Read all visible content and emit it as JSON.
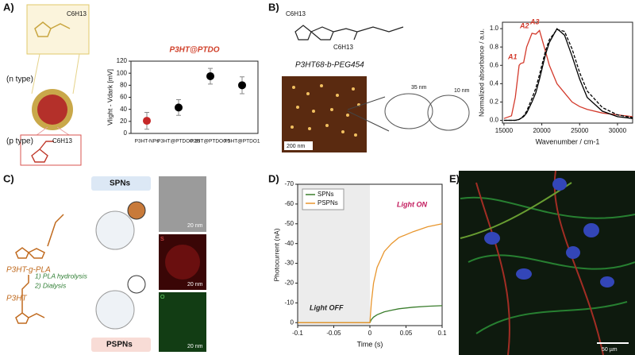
{
  "panel_labels": [
    "A)",
    "B)",
    "C)",
    "D)",
    "E)"
  ],
  "panel_a": {
    "n_type": "(n type)",
    "p_type": "(p type)",
    "substituent": "C6H13"
  },
  "panel_b": {
    "polymer": "P3HT68-b-PEG454",
    "substituent": "C6H13",
    "scale_bar": "200 nm",
    "dims": [
      "35 nm",
      "10 nm"
    ]
  },
  "panel_c": {
    "spns": "SPNs",
    "pspns": "PSPNs",
    "polymer": "P3HT-g-PLA",
    "step1": "1) PLA hydrolysis",
    "step2": "2) Dialysis",
    "p3ht": "P3HT",
    "scale_bars": [
      "20 nm",
      "20 nm",
      "20 nm"
    ],
    "channels": [
      "S",
      "O"
    ]
  },
  "panel_e": {
    "scale_bar": "50 µm"
  },
  "chart_data": [
    {
      "type": "scatter",
      "title": "P3HT@PTDO",
      "y_label": "Vlight - Vdark [mV]",
      "categories": [
        "P3HT-NPs",
        "P3HT@PTDO0.25",
        "P3HT@PTDO0.5",
        "P3HT@PTDO1"
      ],
      "series": [
        {
          "values": [
            21,
            43,
            95,
            80
          ],
          "errors": [
            14,
            13,
            13,
            14
          ],
          "point_colors": [
            "#c62828",
            "#000000",
            "#000000",
            "#000000"
          ]
        }
      ],
      "ylim": [
        0,
        120
      ],
      "yticks": [
        0,
        20,
        40,
        60,
        80,
        100,
        120
      ],
      "grid": false
    },
    {
      "type": "line",
      "x_label": "Wavenumber / cm-1",
      "y_label": "Normalized absorbance / a.u.",
      "x": [
        15000,
        16000,
        16500,
        17000,
        17200,
        17600,
        18000,
        18700,
        19200,
        19700,
        20500,
        21000,
        22000,
        23000,
        24000,
        25000,
        26000,
        28000,
        30000,
        32000
      ],
      "series": [
        {
          "color": "#d33a2c",
          "dash": false,
          "values": [
            0.02,
            0.05,
            0.25,
            0.6,
            0.62,
            0.63,
            0.8,
            0.95,
            0.94,
            0.98,
            0.75,
            0.6,
            0.4,
            0.3,
            0.2,
            0.15,
            0.12,
            0.08,
            0.06,
            0.04
          ]
        },
        {
          "color": "#000000",
          "dash": false,
          "values": [
            0,
            0,
            0,
            0.01,
            0.02,
            0.04,
            0.08,
            0.2,
            0.3,
            0.45,
            0.72,
            0.85,
            1.0,
            0.93,
            0.7,
            0.45,
            0.25,
            0.1,
            0.04,
            0.02
          ]
        },
        {
          "color": "#000000",
          "dash": true,
          "values": [
            0,
            0,
            0,
            0.01,
            0.02,
            0.05,
            0.1,
            0.24,
            0.35,
            0.5,
            0.76,
            0.88,
            0.99,
            0.97,
            0.78,
            0.52,
            0.32,
            0.14,
            0.06,
            0.03
          ]
        }
      ],
      "annotations": [
        "A1",
        "A2",
        "A3"
      ],
      "xlim": [
        14800,
        32000
      ],
      "xticks": [
        15000,
        20000,
        25000,
        30000
      ],
      "ylim": [
        -0.03,
        1.07
      ],
      "yticks": [
        {
          "value": 0,
          "label": "0.0"
        },
        0.2,
        0.4,
        0.6,
        0.8,
        {
          "value": 1,
          "label": "1.0"
        }
      ],
      "grid": false
    },
    {
      "type": "line",
      "x_label": "Time (s)",
      "y_label": "Photocurrent (nA)",
      "x": [
        -0.1,
        -0.05,
        0,
        0.002,
        0.005,
        0.01,
        0.02,
        0.03,
        0.04,
        0.06,
        0.08,
        0.1
      ],
      "series": [
        {
          "name": "SPNs",
          "color": "#3a7d2c",
          "dash": false,
          "values": [
            0,
            0,
            0,
            -1.5,
            -2.8,
            -4,
            -5.5,
            -6.3,
            -7,
            -7.8,
            -8.3,
            -8.6
          ]
        },
        {
          "name": "PSPNs",
          "color": "#e8962e",
          "dash": false,
          "values": [
            0,
            0,
            0,
            -10,
            -20,
            -28,
            -36,
            -40,
            -43,
            -46,
            -48.5,
            -50
          ]
        }
      ],
      "annotations": [
        "Light ON",
        "Light OFF"
      ],
      "shade": [
        -0.1,
        0
      ],
      "legend": "upper left",
      "xlim": [
        -0.1,
        0.1
      ],
      "xticks": [
        -0.1,
        -0.05,
        0,
        0.05,
        0.1
      ],
      "ylim": [
        1.5,
        -70
      ],
      "yticks": [
        0,
        -10,
        -20,
        -30,
        -40,
        -50,
        -60,
        -70
      ],
      "grid": false
    }
  ]
}
